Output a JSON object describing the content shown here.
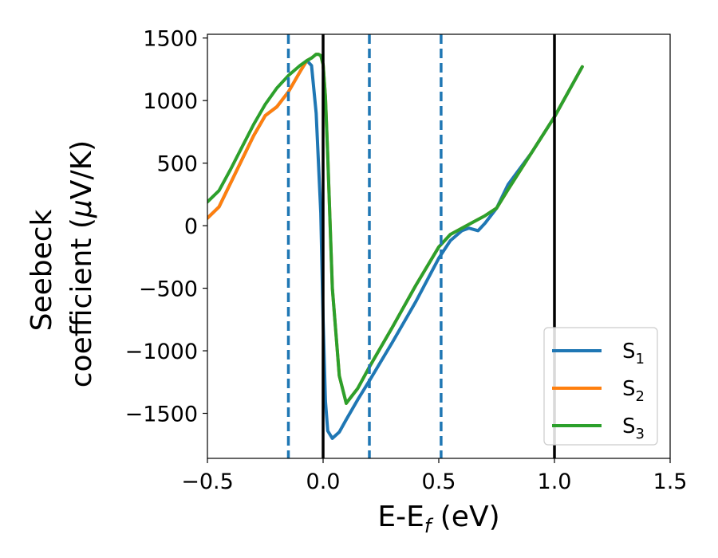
{
  "chart_data": {
    "type": "line",
    "xlabel_main": "E-E",
    "xlabel_sub": "f",
    "xlabel_unit": " (eV)",
    "ylabel_line1": "Seebeck",
    "ylabel_line2_pre": "coefficient  (",
    "ylabel_line2_mu": "μ",
    "ylabel_line2_post": "V/K)",
    "xlim": [
      -0.5,
      1.5
    ],
    "ylim": [
      -1860,
      1530
    ],
    "xticks": [
      -0.5,
      0.0,
      0.5,
      1.0,
      1.5
    ],
    "xtick_labels": [
      "−0.5",
      "0.0",
      "0.5",
      "1.0",
      "1.5"
    ],
    "yticks": [
      -1500,
      -1000,
      -500,
      0,
      500,
      1000,
      1500
    ],
    "ytick_labels": [
      "−1500",
      "−1000",
      "−500",
      "0",
      "500",
      "1000",
      "1500"
    ],
    "vlines_solid": [
      0.0,
      1.0
    ],
    "vlines_dashed": [
      -0.15,
      0.2,
      0.51
    ],
    "grid": false,
    "legend_position": "lower-right",
    "series": [
      {
        "name": "S",
        "subscript": "1",
        "color": "#1f77b4",
        "x": [
          -0.5,
          -0.45,
          -0.4,
          -0.35,
          -0.3,
          -0.25,
          -0.2,
          -0.15,
          -0.1,
          -0.07,
          -0.05,
          -0.03,
          -0.01,
          0.0,
          0.01,
          0.02,
          0.04,
          0.07,
          0.1,
          0.15,
          0.2,
          0.3,
          0.4,
          0.5,
          0.55,
          0.6,
          0.63,
          0.67,
          0.7,
          0.75,
          0.8,
          0.9,
          1.0,
          1.12
        ],
        "y": [
          60,
          150,
          340,
          530,
          720,
          880,
          950,
          1070,
          1230,
          1320,
          1280,
          900,
          100,
          -750,
          -1400,
          -1640,
          -1700,
          -1650,
          -1550,
          -1390,
          -1240,
          -930,
          -610,
          -260,
          -120,
          -40,
          -20,
          -40,
          20,
          140,
          330,
          580,
          870,
          1270
        ]
      },
      {
        "name": "S",
        "subscript": "2",
        "color": "#ff7f0e",
        "x": [
          -0.5,
          -0.45,
          -0.4,
          -0.35,
          -0.3,
          -0.25,
          -0.2,
          -0.15,
          -0.1,
          -0.07,
          -0.05,
          -0.03,
          -0.02,
          -0.01,
          0.0,
          0.01,
          0.02,
          0.04,
          0.07,
          0.1,
          0.15,
          0.2,
          0.3,
          0.4,
          0.5,
          0.55,
          0.6,
          0.65,
          0.7,
          0.75,
          0.8,
          0.9,
          1.0,
          1.12
        ],
        "y": [
          60,
          150,
          340,
          530,
          720,
          880,
          950,
          1070,
          1230,
          1320,
          1340,
          1370,
          1370,
          1360,
          1290,
          1030,
          560,
          -500,
          -1200,
          -1420,
          -1300,
          -1130,
          -810,
          -480,
          -170,
          -70,
          -20,
          30,
          80,
          140,
          290,
          580,
          870,
          1270
        ]
      },
      {
        "name": "S",
        "subscript": "3",
        "color": "#2ca02c",
        "x": [
          -0.5,
          -0.45,
          -0.4,
          -0.35,
          -0.3,
          -0.25,
          -0.2,
          -0.15,
          -0.1,
          -0.07,
          -0.05,
          -0.03,
          -0.02,
          -0.01,
          0.0,
          0.01,
          0.02,
          0.04,
          0.07,
          0.1,
          0.15,
          0.2,
          0.3,
          0.4,
          0.5,
          0.55,
          0.6,
          0.65,
          0.7,
          0.75,
          0.8,
          0.9,
          1.0,
          1.12
        ],
        "y": [
          190,
          280,
          450,
          630,
          810,
          970,
          1100,
          1200,
          1280,
          1320,
          1340,
          1370,
          1370,
          1360,
          1290,
          1030,
          560,
          -500,
          -1200,
          -1420,
          -1300,
          -1130,
          -810,
          -480,
          -170,
          -70,
          -20,
          30,
          80,
          140,
          290,
          580,
          870,
          1270
        ]
      }
    ]
  }
}
